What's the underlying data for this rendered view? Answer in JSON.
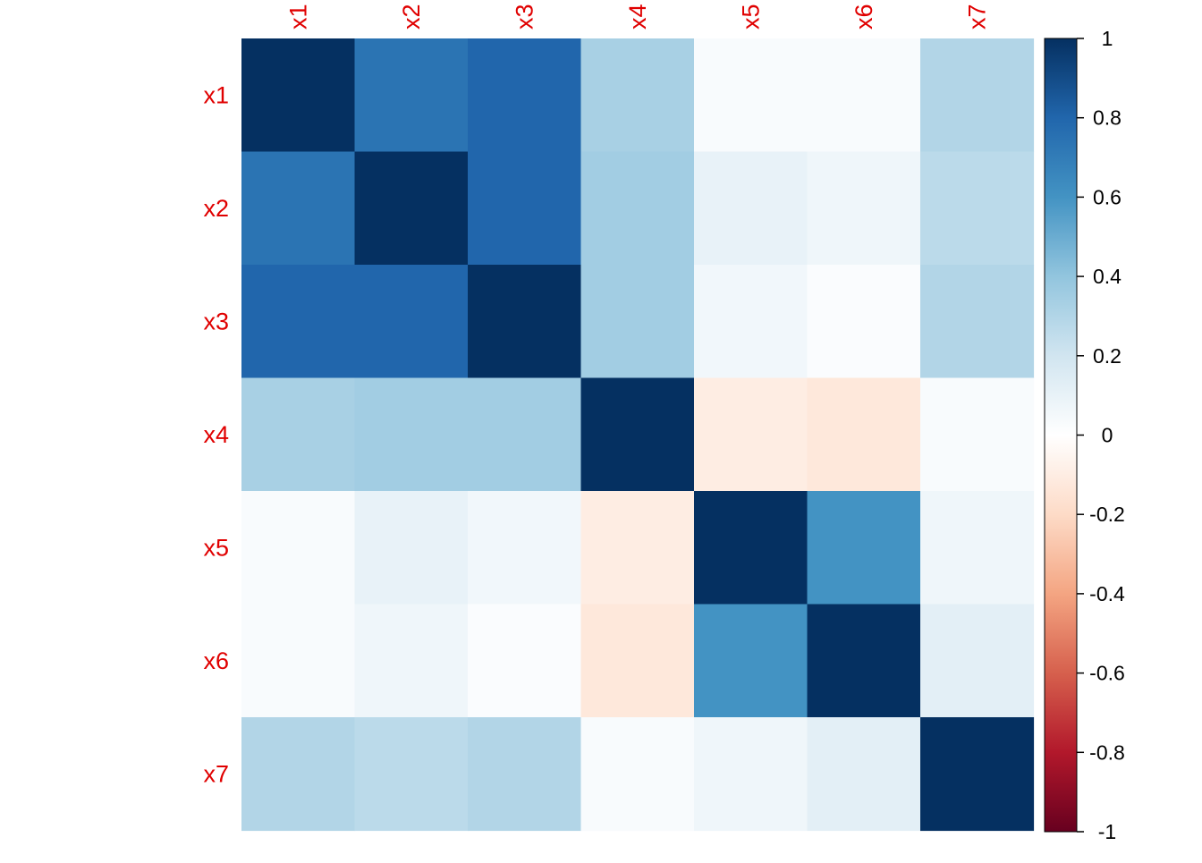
{
  "chart_data": {
    "type": "heatmap",
    "title": "",
    "variables": [
      "x1",
      "x2",
      "x3",
      "x4",
      "x5",
      "x6",
      "x7"
    ],
    "matrix": [
      [
        1.0,
        0.74,
        0.8,
        0.33,
        0.03,
        0.03,
        0.3
      ],
      [
        0.74,
        1.0,
        0.8,
        0.35,
        0.1,
        0.07,
        0.27
      ],
      [
        0.8,
        0.8,
        1.0,
        0.35,
        0.06,
        0.02,
        0.3
      ],
      [
        0.33,
        0.35,
        0.35,
        1.0,
        -0.1,
        -0.13,
        0.03
      ],
      [
        0.03,
        0.1,
        0.06,
        -0.1,
        1.0,
        0.6,
        0.07
      ],
      [
        0.03,
        0.07,
        0.02,
        -0.13,
        0.6,
        1.0,
        0.12
      ],
      [
        0.3,
        0.27,
        0.3,
        0.03,
        0.07,
        0.12,
        1.0
      ]
    ],
    "label_color": "#e00000",
    "colorbar": {
      "min": -1,
      "max": 1,
      "ticks": [
        1,
        0.8,
        0.6,
        0.4,
        0.2,
        0,
        -0.2,
        -0.4,
        -0.6,
        -0.8,
        -1
      ],
      "tick_labels": [
        "1",
        "0.8",
        "0.6",
        "0.4",
        "0.2",
        "0",
        "-0.2",
        "-0.4",
        "-0.6",
        "-0.8",
        "-1"
      ],
      "palette": [
        "#67001f",
        "#b2182b",
        "#d6604d",
        "#f4a582",
        "#fddbc7",
        "#ffffff",
        "#d1e5f0",
        "#92c5de",
        "#4393c3",
        "#2166ac",
        "#053061"
      ]
    },
    "legend": "right",
    "grid": false
  }
}
